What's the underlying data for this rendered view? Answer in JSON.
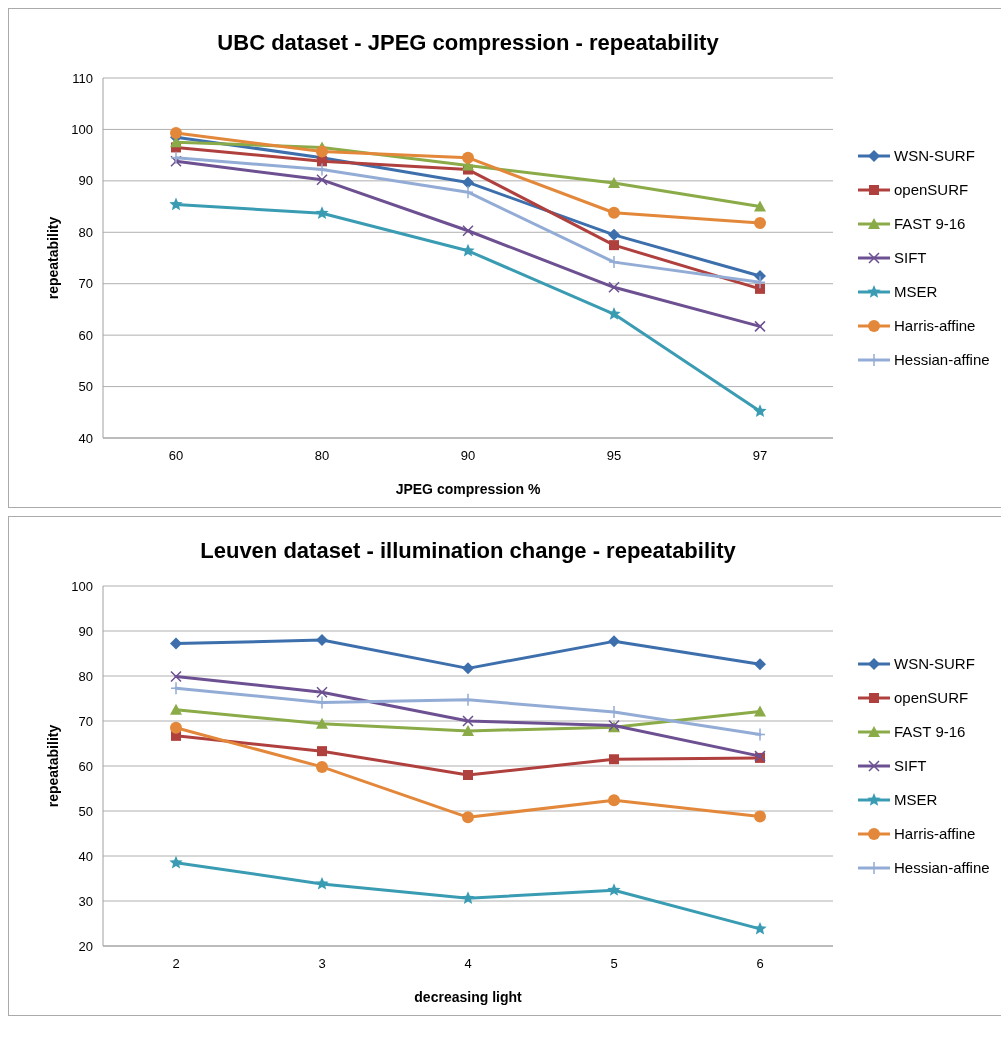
{
  "chart_data": [
    {
      "type": "line",
      "title": "UBC dataset - JPEG compression - repeatability",
      "xlabel": "JPEG compression %",
      "ylabel": "repeatability",
      "categories": [
        "60",
        "80",
        "90",
        "95",
        "97"
      ],
      "ylim": [
        40,
        110
      ],
      "yticks": [
        40,
        50,
        60,
        70,
        80,
        90,
        100,
        110
      ],
      "grid": "y",
      "legend": "right",
      "series": [
        {
          "name": "WSN-SURF",
          "color": "#3d6fad",
          "marker": "diamond",
          "values": [
            98.5,
            94.5,
            89.7,
            79.5,
            71.5
          ]
        },
        {
          "name": "openSURF",
          "color": "#b0403d",
          "marker": "square",
          "values": [
            96.5,
            93.8,
            92.2,
            77.5,
            69
          ]
        },
        {
          "name": "FAST 9-16",
          "color": "#8aab47",
          "marker": "triangle",
          "values": [
            97.5,
            96.5,
            93,
            89.6,
            85
          ]
        },
        {
          "name": "SIFT",
          "color": "#6d5091",
          "marker": "cross",
          "values": [
            93.8,
            90.2,
            80.3,
            69.3,
            61.7
          ]
        },
        {
          "name": "MSER",
          "color": "#3a9cb3",
          "marker": "star",
          "values": [
            85.4,
            83.7,
            76.4,
            64.1,
            45.2
          ]
        },
        {
          "name": "Harris-affine",
          "color": "#e3883a",
          "marker": "circle",
          "values": [
            99.3,
            95.7,
            94.5,
            83.8,
            81.8
          ]
        },
        {
          "name": "Hessian-affine",
          "color": "#93acd6",
          "marker": "plus",
          "values": [
            94.5,
            92.2,
            87.8,
            74.2,
            70.3
          ]
        }
      ]
    },
    {
      "type": "line",
      "title": "Leuven dataset - illumination change - repeatability",
      "xlabel": "decreasing light",
      "ylabel": "repeatability",
      "categories": [
        "2",
        "3",
        "4",
        "5",
        "6"
      ],
      "ylim": [
        20,
        100
      ],
      "yticks": [
        20,
        30,
        40,
        50,
        60,
        70,
        80,
        90,
        100
      ],
      "grid": "y",
      "legend": "right",
      "series": [
        {
          "name": "WSN-SURF",
          "color": "#3d6fad",
          "marker": "diamond",
          "values": [
            87.2,
            88,
            81.7,
            87.7,
            82.6
          ]
        },
        {
          "name": "openSURF",
          "color": "#b0403d",
          "marker": "square",
          "values": [
            66.7,
            63.3,
            58,
            61.5,
            61.8
          ]
        },
        {
          "name": "FAST 9-16",
          "color": "#8aab47",
          "marker": "triangle",
          "values": [
            72.5,
            69.4,
            67.8,
            68.6,
            72.1
          ]
        },
        {
          "name": "SIFT",
          "color": "#6d5091",
          "marker": "cross",
          "values": [
            79.9,
            76.4,
            70,
            69,
            62.2
          ]
        },
        {
          "name": "MSER",
          "color": "#3a9cb3",
          "marker": "star",
          "values": [
            38.5,
            33.8,
            30.6,
            32.4,
            23.8
          ]
        },
        {
          "name": "Harris-affine",
          "color": "#e3883a",
          "marker": "circle",
          "values": [
            68.5,
            59.8,
            48.6,
            52.4,
            48.8
          ]
        },
        {
          "name": "Hessian-affine",
          "color": "#93acd6",
          "marker": "plus",
          "values": [
            77.3,
            74.1,
            74.7,
            72,
            67
          ]
        }
      ]
    }
  ]
}
